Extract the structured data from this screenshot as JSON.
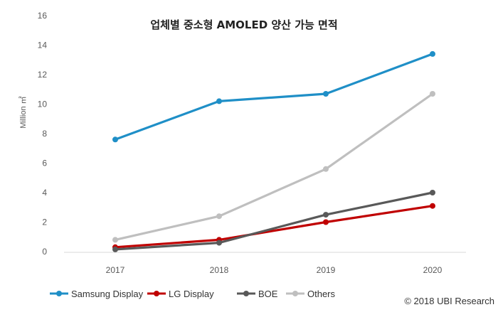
{
  "chart_data": {
    "type": "line",
    "title": "업체별 중소형 AMOLED 양산 가능 면적",
    "ylabel": "Million ㎡",
    "xlabel": "",
    "categories": [
      "2017",
      "2018",
      "2019",
      "2020"
    ],
    "ylim": [
      0,
      16
    ],
    "yticks": [
      "0",
      "2",
      "4",
      "6",
      "8",
      "10",
      "12",
      "14",
      "16"
    ],
    "grid": false,
    "legend_position": "bottom",
    "series": [
      {
        "name": "Samsung Display",
        "values": [
          7.6,
          10.2,
          10.7,
          13.4
        ],
        "color": "#1f8fc7"
      },
      {
        "name": "LG Display",
        "values": [
          0.3,
          0.8,
          2.0,
          3.1
        ],
        "color": "#c00000"
      },
      {
        "name": "BOE",
        "values": [
          0.15,
          0.6,
          2.5,
          4.0
        ],
        "color": "#595959"
      },
      {
        "name": "Others",
        "values": [
          0.8,
          2.4,
          5.6,
          10.7
        ],
        "color": "#bfbfbf"
      }
    ]
  },
  "copyright": "© 2018 UBI Research"
}
